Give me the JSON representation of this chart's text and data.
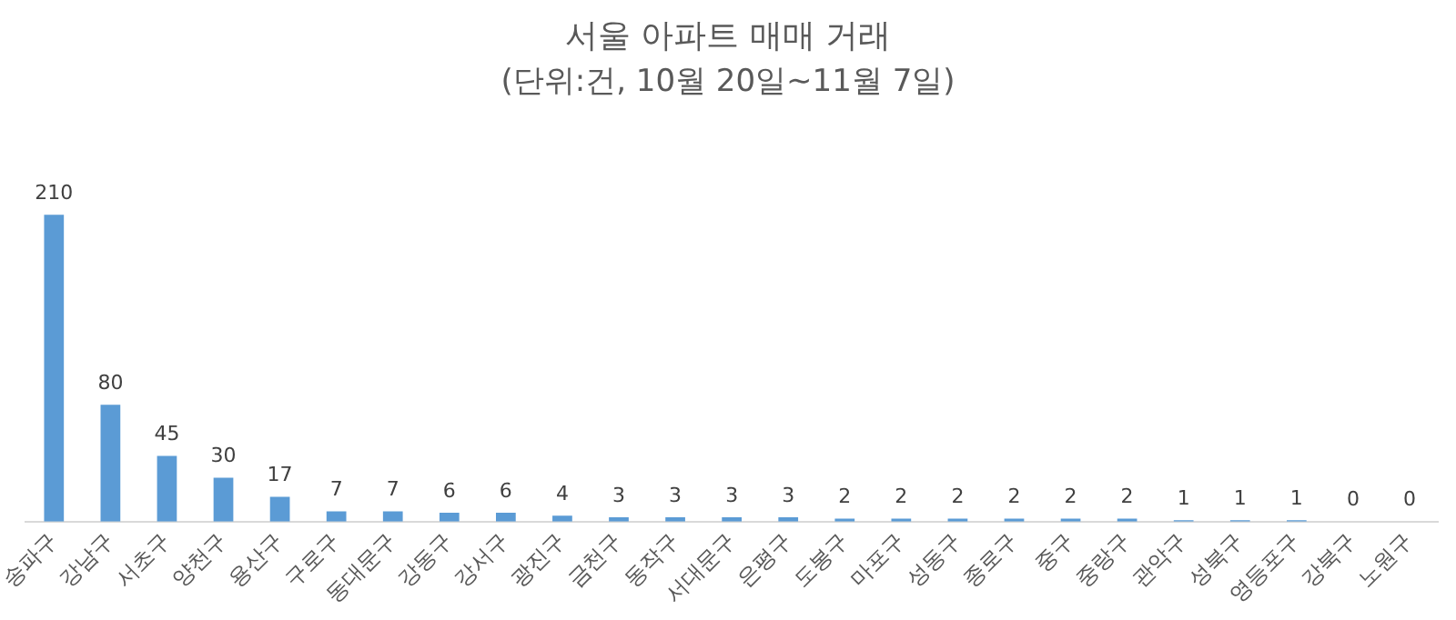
{
  "chart_data": {
    "type": "bar",
    "title": "서울 아파트 매매 거래",
    "subtitle": "(단위:건, 10월 20일~11월 7일)",
    "categories": [
      "송파구",
      "강남구",
      "서초구",
      "양천구",
      "용산구",
      "구로구",
      "동대문구",
      "강동구",
      "강서구",
      "광진구",
      "금천구",
      "동작구",
      "서대문구",
      "은평구",
      "도봉구",
      "마포구",
      "성동구",
      "종로구",
      "중구",
      "중랑구",
      "관악구",
      "성북구",
      "영등포구",
      "강북구",
      "노원구"
    ],
    "values": [
      210,
      80,
      45,
      30,
      17,
      7,
      7,
      6,
      6,
      4,
      3,
      3,
      3,
      3,
      2,
      2,
      2,
      2,
      2,
      2,
      1,
      1,
      1,
      0,
      0
    ],
    "color": "#5b9bd5",
    "data_labels": true,
    "grid": false,
    "legend": false
  }
}
